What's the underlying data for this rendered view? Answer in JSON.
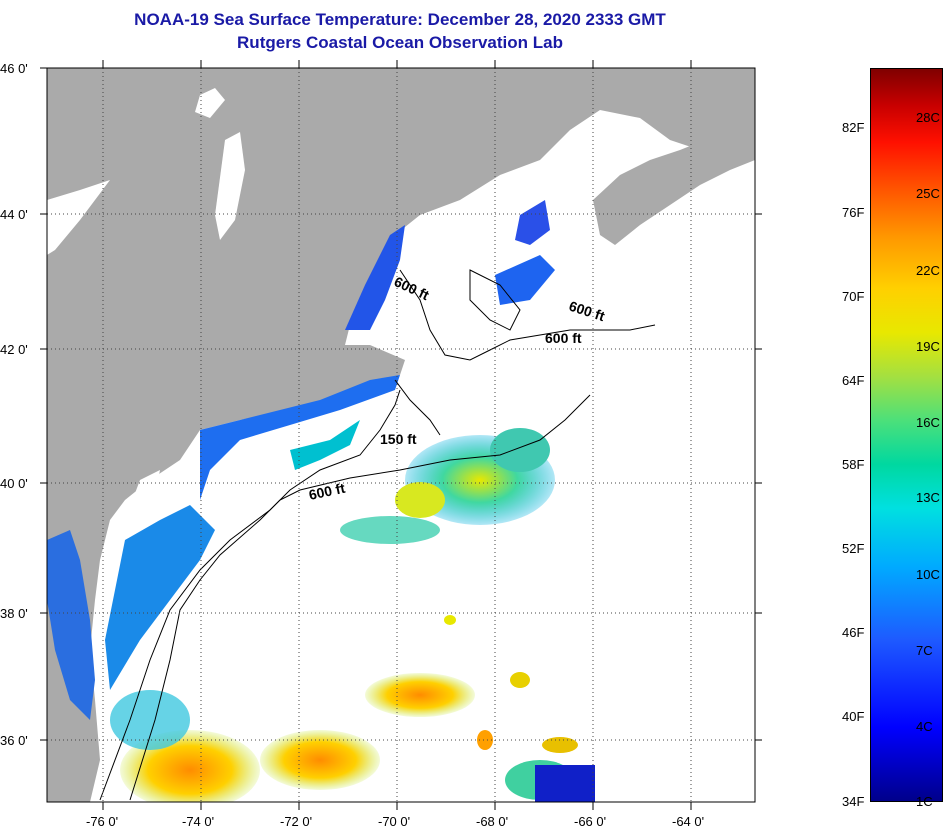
{
  "title": "NOAA-19 Sea Surface Temperature:  December 28, 2020 2333 GMT",
  "subtitle": "Rutgers Coastal Ocean Observation Lab",
  "lat_labels": [
    "46 0'",
    "44 0'",
    "42 0'",
    "40 0'",
    "38 0'",
    "36 0'"
  ],
  "lon_labels": [
    "-76 0'",
    "-74 0'",
    "-72 0'",
    "-70 0'",
    "-68 0'",
    "-66 0'",
    "-64 0'"
  ],
  "contour_labels": [
    "600 ft",
    "600 ft",
    "600 ft",
    "150 ft",
    "600 ft"
  ],
  "colorbar": {
    "fahrenheit": [
      "82F",
      "76F",
      "70F",
      "64F",
      "58F",
      "52F",
      "46F",
      "40F",
      "34F"
    ],
    "celsius": [
      "28C",
      "25C",
      "22C",
      "19C",
      "16C",
      "13C",
      "10C",
      "7C",
      "4C",
      "1C"
    ]
  },
  "colors": {
    "land": "#aaaaaa",
    "title": "#1a1aa6",
    "cloud": "#ffffff"
  }
}
